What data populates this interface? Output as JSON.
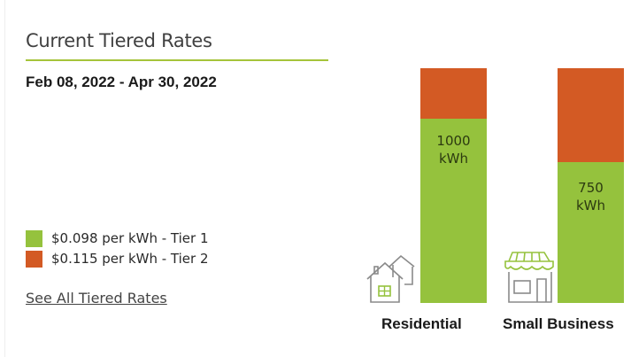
{
  "title": "Current Tiered Rates",
  "date_range": "Feb 08, 2022 - Apr 30, 2022",
  "legend": [
    {
      "label": "$0.098 per kWh - Tier 1",
      "color": "#95c23d"
    },
    {
      "label": "$0.115 per kWh - Tier 2",
      "color": "#d35a24"
    }
  ],
  "see_all_link": "See All Tiered Rates",
  "colors": {
    "accent": "#a5c43a",
    "tier1": "#95c23d",
    "tier2": "#d35a24"
  },
  "categories": [
    {
      "label": "Residential",
      "icon": "house-icon",
      "tier1_value": "1000",
      "tier1_unit": "kWh",
      "tier1_fraction": 0.785
    },
    {
      "label": "Small Business",
      "icon": "storefront-icon",
      "tier1_value": "750",
      "tier1_unit": "kWh",
      "tier1_fraction": 0.594
    }
  ]
}
